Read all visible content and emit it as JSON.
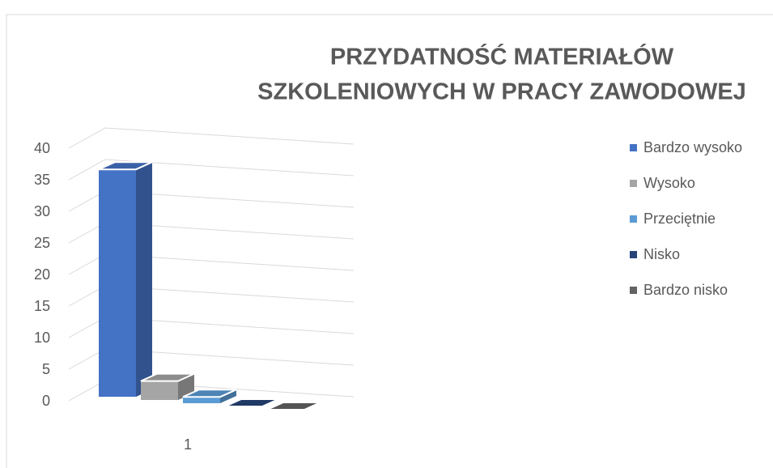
{
  "chart_data": {
    "type": "bar3d",
    "title": [
      "PRZYDATNOŚĆ MATERIAŁÓW",
      "SZKOLENIOWYCH W PRACY ZAWODOWEJ"
    ],
    "categories": [
      "1"
    ],
    "series": [
      {
        "name": "Bardzo wysoko",
        "color": "#4472c4",
        "values": [
          36
        ]
      },
      {
        "name": "Wysoko",
        "color": "#a5a5a5",
        "values": [
          3
        ]
      },
      {
        "name": "Przeciętnie",
        "color": "#5b9bd5",
        "values": [
          1
        ]
      },
      {
        "name": "Nisko",
        "color": "#264478",
        "values": [
          0
        ]
      },
      {
        "name": "Bardzo nisko",
        "color": "#636363",
        "values": [
          0
        ]
      }
    ],
    "ylim": [
      0,
      40
    ],
    "yticks": [
      0,
      5,
      10,
      15,
      20,
      25,
      30,
      35,
      40
    ],
    "grid": true,
    "legend": "right"
  }
}
